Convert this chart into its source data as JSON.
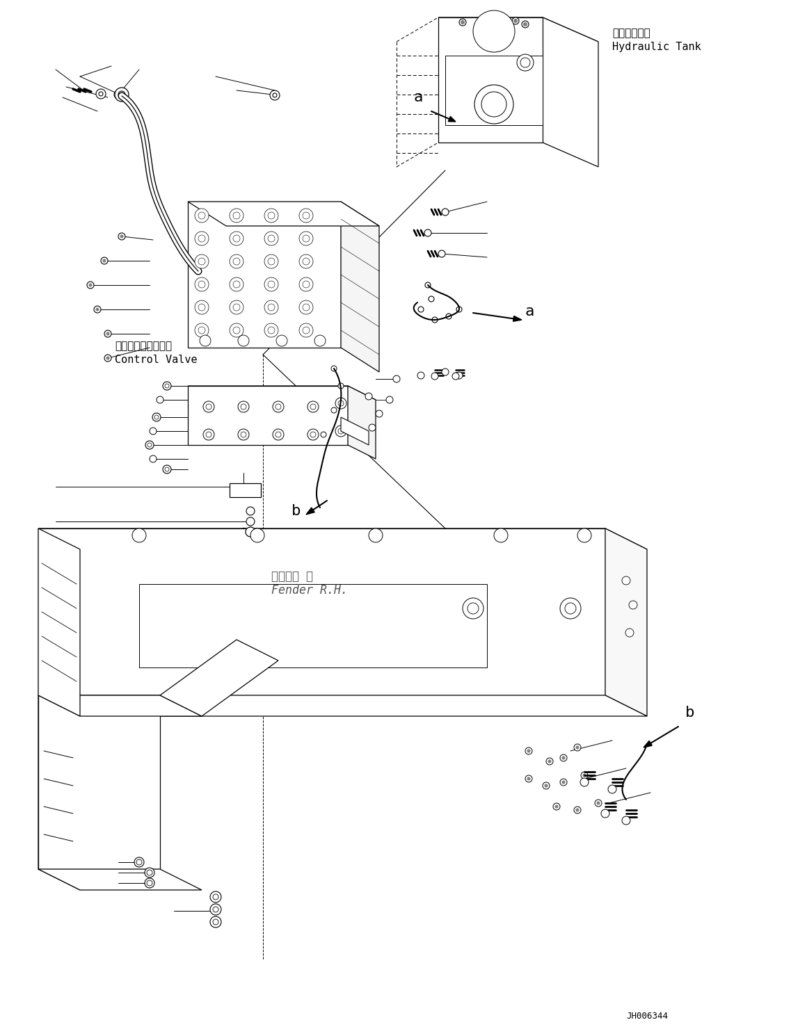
{
  "fig_width": 11.37,
  "fig_height": 14.9,
  "dpi": 100,
  "bg_color": "#ffffff",
  "labels": {
    "hydraulic_tank_jp": "作動油タンク",
    "hydraulic_tank_en": "Hydraulic Tank",
    "control_valve_jp": "コントロールバルブ",
    "control_valve_en": "Control Valve",
    "fender_jp": "フェンダ 右",
    "fender_en": "Fender R.H.",
    "label_a": "a",
    "label_b": "b",
    "part_number": "JH006344"
  }
}
